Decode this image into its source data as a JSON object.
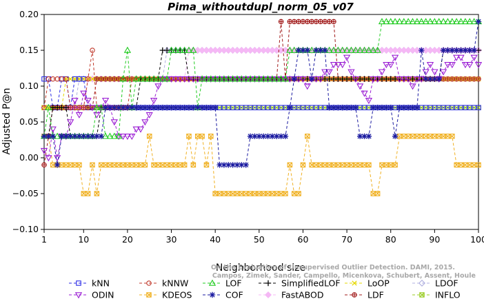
{
  "chart_data": {
    "type": "line",
    "title": "Pima_withoutdupl_norm_05_v07",
    "xlabel": "Neighborhood size",
    "ylabel": "Adjusted P@n",
    "xlim": [
      1,
      100
    ],
    "ylim": [
      -0.1,
      0.2
    ],
    "x_ticks": [
      1,
      10,
      20,
      30,
      40,
      50,
      60,
      70,
      80,
      90,
      100
    ],
    "y_ticks": [
      -0.1,
      -0.05,
      0.0,
      0.05,
      0.1,
      0.15,
      0.2
    ],
    "y_tick_labels": [
      "−0.10",
      "−0.05",
      "0.00",
      "0.05",
      "0.10",
      "0.15",
      "0.20"
    ],
    "grid": "none",
    "legend_position": "bottom",
    "watermark": [
      "Campos, Zimek, Sander, Campello, Micenkova, Schubert, Assent, Houle",
      "On the Evaluation of Unsupervised Outlier Detection. DAMI, 2015."
    ],
    "series": [
      {
        "name": "kNN",
        "color": "#2a2ae6",
        "marker": "square",
        "points": [
          [
            1,
            0.11
          ],
          [
            2,
            0.11
          ],
          [
            3,
            0.07
          ],
          [
            5,
            0.11
          ],
          [
            6,
            0.11
          ],
          [
            7,
            0.07
          ],
          [
            8,
            0.11
          ],
          [
            9,
            0.11
          ],
          [
            10,
            0.11
          ],
          [
            11,
            0.07
          ],
          [
            100,
            0.07
          ]
        ]
      },
      {
        "name": "kNNW",
        "color": "#c0392b",
        "marker": "circle",
        "points": [
          [
            1,
            0.07
          ],
          [
            2,
            0.11
          ],
          [
            3,
            0.11
          ],
          [
            6,
            0.11
          ],
          [
            7,
            0.07
          ],
          [
            10,
            0.07
          ],
          [
            11,
            0.11
          ],
          [
            12,
            0.15
          ],
          [
            13,
            0.07
          ],
          [
            20,
            0.07
          ],
          [
            21,
            0.11
          ],
          [
            100,
            0.11
          ]
        ]
      },
      {
        "name": "LOF",
        "color": "#22cc22",
        "marker": "triangle",
        "points": [
          [
            1,
            0.03
          ],
          [
            2,
            0.07
          ],
          [
            3,
            0.03
          ],
          [
            12,
            0.03
          ],
          [
            13,
            0.07
          ],
          [
            15,
            0.03
          ],
          [
            18,
            0.03
          ],
          [
            19,
            0.11
          ],
          [
            20,
            0.15
          ],
          [
            21,
            0.07
          ],
          [
            22,
            0.11
          ],
          [
            29,
            0.11
          ],
          [
            30,
            0.15
          ],
          [
            35,
            0.15
          ],
          [
            36,
            0.07
          ],
          [
            37,
            0.11
          ],
          [
            56,
            0.11
          ],
          [
            57,
            0.15
          ],
          [
            66,
            0.15
          ],
          [
            67,
            0.15
          ],
          [
            77,
            0.15
          ],
          [
            78,
            0.19
          ],
          [
            100,
            0.19
          ]
        ]
      },
      {
        "name": "SimplifiedLOF",
        "color": "#000000",
        "marker": "plus",
        "points": [
          [
            1,
            0.03
          ],
          [
            2,
            0.03
          ],
          [
            3,
            0.07
          ],
          [
            6,
            0.07
          ],
          [
            7,
            0.03
          ],
          [
            13,
            0.03
          ],
          [
            14,
            0.07
          ],
          [
            22,
            0.07
          ],
          [
            23,
            0.11
          ],
          [
            27,
            0.11
          ],
          [
            28,
            0.15
          ],
          [
            33,
            0.15
          ],
          [
            34,
            0.11
          ],
          [
            69,
            0.11
          ],
          [
            70,
            0.11
          ],
          [
            91,
            0.11
          ],
          [
            92,
            0.15
          ],
          [
            100,
            0.15
          ]
        ]
      },
      {
        "name": "LoOP",
        "color": "#e6d800",
        "marker": "x",
        "points": [
          [
            1,
            0.07
          ],
          [
            5,
            0.07
          ],
          [
            6,
            0.11
          ],
          [
            100,
            0.11
          ]
        ]
      },
      {
        "name": "LDOF",
        "color": "#b0b0e0",
        "marker": "diamond",
        "points": [
          [
            1,
            0.07
          ],
          [
            8,
            0.07
          ],
          [
            9,
            0.11
          ],
          [
            28,
            0.11
          ],
          [
            29,
            0.15
          ],
          [
            44,
            0.15
          ],
          [
            45,
            0.15
          ],
          [
            88,
            0.15
          ],
          [
            89,
            0.15
          ],
          [
            100,
            0.15
          ]
        ]
      },
      {
        "name": "ODIN",
        "color": "#9b1fd4",
        "marker": "triangle-down",
        "points": [
          [
            1,
            0.01
          ],
          [
            2,
            0.0
          ],
          [
            3,
            0.04
          ],
          [
            4,
            0.0
          ],
          [
            5,
            0.03
          ],
          [
            6,
            0.03
          ],
          [
            7,
            0.05
          ],
          [
            8,
            0.08
          ],
          [
            9,
            0.06
          ],
          [
            10,
            0.09
          ],
          [
            11,
            0.08
          ],
          [
            12,
            0.07
          ],
          [
            13,
            0.06
          ],
          [
            14,
            0.07
          ],
          [
            15,
            0.08
          ],
          [
            16,
            0.07
          ],
          [
            17,
            0.05
          ],
          [
            18,
            0.03
          ],
          [
            19,
            0.03
          ],
          [
            20,
            0.03
          ],
          [
            21,
            0.03
          ],
          [
            22,
            0.04
          ],
          [
            23,
            0.04
          ],
          [
            24,
            0.05
          ],
          [
            25,
            0.06
          ],
          [
            26,
            0.08
          ],
          [
            27,
            0.1
          ],
          [
            28,
            0.11
          ],
          [
            60,
            0.11
          ],
          [
            61,
            0.1
          ],
          [
            62,
            0.11
          ],
          [
            63,
            0.11
          ],
          [
            64,
            0.11
          ],
          [
            65,
            0.12
          ],
          [
            66,
            0.12
          ],
          [
            67,
            0.13
          ],
          [
            68,
            0.13
          ],
          [
            69,
            0.13
          ],
          [
            70,
            0.14
          ],
          [
            71,
            0.12
          ],
          [
            72,
            0.11
          ],
          [
            73,
            0.1
          ],
          [
            74,
            0.09
          ],
          [
            75,
            0.08
          ],
          [
            76,
            0.11
          ],
          [
            77,
            0.11
          ],
          [
            78,
            0.12
          ],
          [
            79,
            0.13
          ],
          [
            80,
            0.13
          ],
          [
            81,
            0.14
          ],
          [
            82,
            0.11
          ],
          [
            83,
            0.11
          ],
          [
            84,
            0.11
          ],
          [
            85,
            0.1
          ],
          [
            86,
            0.11
          ],
          [
            87,
            0.11
          ],
          [
            88,
            0.12
          ],
          [
            89,
            0.13
          ],
          [
            90,
            0.12
          ],
          [
            91,
            0.11
          ],
          [
            92,
            0.12
          ],
          [
            93,
            0.13
          ],
          [
            94,
            0.13
          ],
          [
            95,
            0.14
          ],
          [
            96,
            0.14
          ],
          [
            97,
            0.13
          ],
          [
            98,
            0.13
          ],
          [
            99,
            0.14
          ],
          [
            100,
            0.13
          ]
        ]
      },
      {
        "name": "KDEOS",
        "color": "#f0b020",
        "marker": "square-x",
        "points": [
          [
            1,
            0.03
          ],
          [
            2,
            0.03
          ],
          [
            3,
            -0.01
          ],
          [
            9,
            -0.01
          ],
          [
            10,
            -0.05
          ],
          [
            11,
            -0.05
          ],
          [
            12,
            -0.01
          ],
          [
            13,
            -0.05
          ],
          [
            14,
            -0.01
          ],
          [
            24,
            -0.01
          ],
          [
            25,
            0.03
          ],
          [
            26,
            -0.01
          ],
          [
            33,
            -0.01
          ],
          [
            34,
            0.03
          ],
          [
            35,
            -0.01
          ],
          [
            36,
            0.03
          ],
          [
            37,
            0.03
          ],
          [
            38,
            -0.01
          ],
          [
            39,
            0.03
          ],
          [
            40,
            -0.05
          ],
          [
            56,
            -0.05
          ],
          [
            57,
            -0.01
          ],
          [
            58,
            -0.05
          ],
          [
            59,
            -0.05
          ],
          [
            60,
            -0.01
          ],
          [
            61,
            0.03
          ],
          [
            62,
            -0.01
          ],
          [
            75,
            -0.01
          ],
          [
            76,
            -0.05
          ],
          [
            77,
            -0.05
          ],
          [
            78,
            -0.01
          ],
          [
            81,
            -0.01
          ],
          [
            82,
            0.03
          ],
          [
            94,
            0.03
          ],
          [
            95,
            -0.01
          ],
          [
            100,
            -0.01
          ]
        ]
      },
      {
        "name": "COF",
        "color": "#1a1aa0",
        "marker": "asterisk",
        "points": [
          [
            1,
            0.03
          ],
          [
            3,
            0.03
          ],
          [
            4,
            -0.01
          ],
          [
            5,
            0.03
          ],
          [
            14,
            0.03
          ],
          [
            15,
            0.07
          ],
          [
            40,
            0.07
          ],
          [
            41,
            -0.01
          ],
          [
            47,
            -0.01
          ],
          [
            48,
            0.03
          ],
          [
            56,
            0.03
          ],
          [
            57,
            0.07
          ],
          [
            58,
            0.11
          ],
          [
            59,
            0.15
          ],
          [
            61,
            0.15
          ],
          [
            62,
            0.11
          ],
          [
            63,
            0.15
          ],
          [
            65,
            0.15
          ],
          [
            66,
            0.07
          ],
          [
            72,
            0.07
          ],
          [
            73,
            0.03
          ],
          [
            75,
            0.03
          ],
          [
            76,
            0.07
          ],
          [
            80,
            0.07
          ],
          [
            81,
            0.03
          ],
          [
            82,
            0.07
          ],
          [
            86,
            0.07
          ],
          [
            87,
            0.15
          ],
          [
            88,
            0.11
          ],
          [
            91,
            0.11
          ],
          [
            92,
            0.15
          ],
          [
            99,
            0.15
          ],
          [
            100,
            0.19
          ]
        ]
      },
      {
        "name": "FastABOD",
        "color": "#f5b8f5",
        "marker": "diamond-filled",
        "points": [
          [
            1,
            0.07
          ],
          [
            10,
            0.07
          ],
          [
            11,
            0.11
          ],
          [
            33,
            0.11
          ],
          [
            34,
            0.15
          ],
          [
            59,
            0.15
          ],
          [
            60,
            0.15
          ],
          [
            100,
            0.15
          ]
        ]
      },
      {
        "name": "LDF",
        "color": "#a01818",
        "marker": "circle-plus",
        "points": [
          [
            1,
            -0.01
          ],
          [
            2,
            0.03
          ],
          [
            3,
            0.07
          ],
          [
            12,
            0.07
          ],
          [
            13,
            0.11
          ],
          [
            54,
            0.11
          ],
          [
            55,
            0.19
          ],
          [
            56,
            0.11
          ],
          [
            57,
            0.19
          ],
          [
            67,
            0.19
          ],
          [
            68,
            0.11
          ],
          [
            100,
            0.11
          ]
        ]
      },
      {
        "name": "INFLO",
        "color": "#99cc22",
        "marker": "square-x",
        "points": [
          [
            1,
            0.07
          ],
          [
            100,
            0.07
          ]
        ]
      }
    ]
  }
}
